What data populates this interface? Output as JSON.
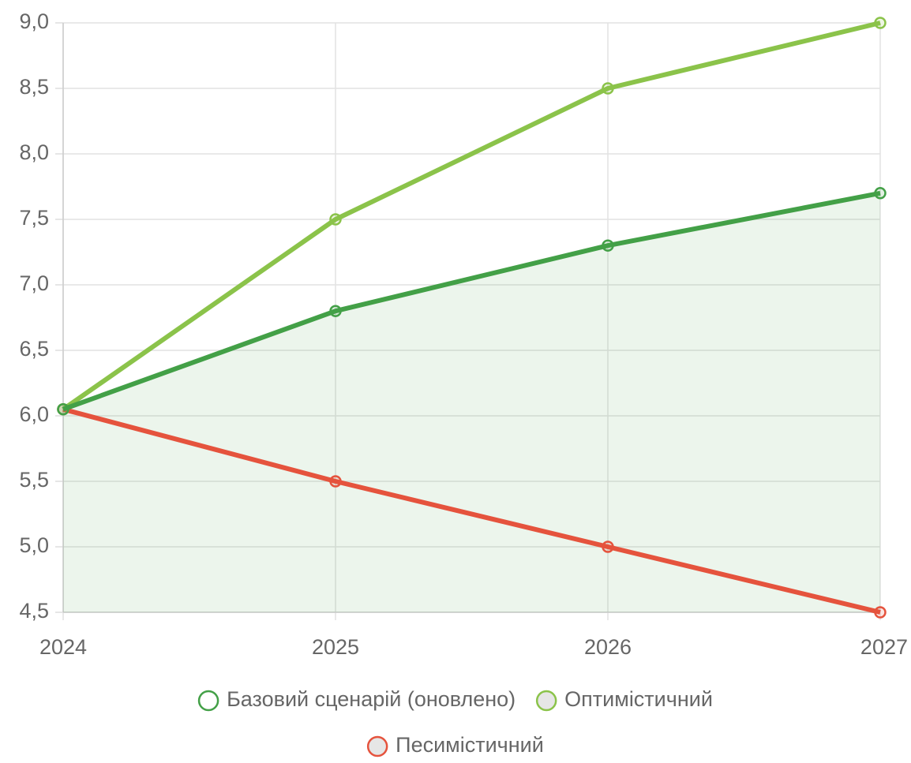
{
  "chart_data": {
    "type": "line",
    "categories": [
      "2024",
      "2025",
      "2026",
      "2027"
    ],
    "series": [
      {
        "name": "Базовий сценарій (оновлено)",
        "color": "#43a047",
        "fill": true,
        "values": [
          6.05,
          6.8,
          7.3,
          7.7
        ]
      },
      {
        "name": "Оптимістичний",
        "color": "#8bc34a",
        "fill": false,
        "values": [
          6.05,
          7.5,
          8.5,
          9.0
        ]
      },
      {
        "name": "Песимістичний",
        "color": "#e5533d",
        "fill": false,
        "values": [
          6.05,
          5.5,
          5.0,
          4.5
        ]
      }
    ],
    "ylim": [
      4.5,
      9.0
    ],
    "yticks": [
      {
        "value": 4.5,
        "label": "4,5"
      },
      {
        "value": 5.0,
        "label": "5,0"
      },
      {
        "value": 5.5,
        "label": "5,5"
      },
      {
        "value": 6.0,
        "label": "6,0"
      },
      {
        "value": 6.5,
        "label": "6,5"
      },
      {
        "value": 7.0,
        "label": "7,0"
      },
      {
        "value": 7.5,
        "label": "7,5"
      },
      {
        "value": 8.0,
        "label": "8,0"
      },
      {
        "value": 8.5,
        "label": "8,5"
      },
      {
        "value": 9.0,
        "label": "9,0"
      }
    ],
    "grid": true,
    "legend": "bottom"
  }
}
